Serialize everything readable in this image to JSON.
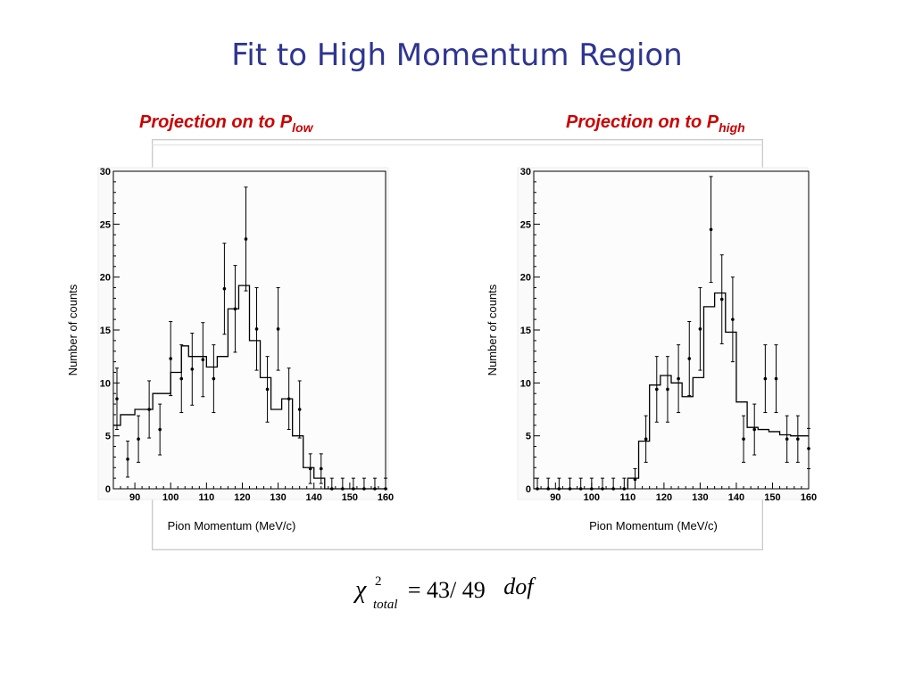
{
  "slide": {
    "title": "Fit to High Momentum Region",
    "left_label": "Projection on to P",
    "left_label_sub": "low",
    "right_label": "Projection on to P",
    "right_label_sub": "high",
    "equation": {
      "symbol": "χ",
      "superscript": "2",
      "subscript": "total",
      "value": "= 43/ 49",
      "unit": "dof"
    }
  },
  "colors": {
    "title": "#2e3592",
    "subtitle": "#cc0000",
    "plot_bg": "#fafafa"
  },
  "chart_data": [
    {
      "type": "bar",
      "title": "",
      "xlabel": "Pion Momentum (MeV/c)",
      "ylabel": "Number of counts",
      "xlim": [
        84,
        160
      ],
      "ylim": [
        0,
        30
      ],
      "xticks": [
        90,
        100,
        110,
        120,
        130,
        140,
        150,
        160
      ],
      "yticks": [
        0,
        5,
        10,
        15,
        20,
        25,
        30
      ],
      "fit_step": {
        "edges": [
          84,
          86,
          90,
          95,
          100,
          103,
          105,
          110,
          113,
          116,
          119,
          122,
          125,
          128,
          131,
          134,
          137,
          140,
          143,
          145,
          160
        ],
        "values": [
          6,
          7,
          7.5,
          9,
          11,
          13.5,
          12.5,
          11.5,
          12.5,
          17,
          19.2,
          14,
          10.5,
          7.5,
          8.5,
          5,
          2,
          1,
          0,
          0
        ]
      },
      "points": {
        "x": [
          85,
          88,
          91,
          94,
          97,
          100,
          103,
          106,
          109,
          112,
          115,
          118,
          121,
          124,
          127,
          130,
          133,
          136,
          139,
          142,
          145,
          148,
          151,
          154,
          157,
          160
        ],
        "y": [
          8.5,
          2.8,
          4.7,
          7.5,
          5.6,
          12.3,
          10.4,
          11.3,
          12.2,
          10.4,
          18.9,
          17.0,
          23.6,
          15.1,
          9.4,
          15.1,
          8.5,
          7.5,
          1.9,
          1.9,
          0,
          0,
          0,
          0,
          0,
          0
        ],
        "err": [
          2.9,
          1.7,
          2.2,
          2.7,
          2.4,
          3.5,
          3.2,
          3.4,
          3.5,
          3.2,
          4.3,
          4.1,
          4.9,
          3.9,
          3.1,
          3.9,
          2.9,
          2.7,
          1.4,
          1.4,
          1,
          1,
          1,
          1,
          1,
          1
        ]
      }
    },
    {
      "type": "bar",
      "title": "",
      "xlabel": "Pion Momentum (MeV/c)",
      "ylabel": "Number of counts",
      "xlim": [
        84,
        160
      ],
      "ylim": [
        0,
        30
      ],
      "xticks": [
        90,
        100,
        110,
        120,
        130,
        140,
        150,
        160
      ],
      "yticks": [
        0,
        5,
        10,
        15,
        20,
        25,
        30
      ],
      "fit_step": {
        "edges": [
          84,
          110,
          113,
          116,
          119,
          122,
          125,
          128,
          131,
          134,
          137,
          140,
          143,
          146,
          149,
          152,
          155,
          160
        ],
        "values": [
          0,
          1,
          4.5,
          9.8,
          10.7,
          10,
          8.7,
          10.5,
          17.2,
          18.5,
          14.8,
          8.2,
          5.8,
          5.6,
          5.4,
          5.1,
          5
        ]
      },
      "points": {
        "x": [
          85,
          88,
          91,
          94,
          97,
          100,
          103,
          106,
          109,
          112,
          115,
          118,
          121,
          124,
          127,
          130,
          133,
          136,
          139,
          142,
          145,
          148,
          151,
          154,
          157,
          160
        ],
        "y": [
          0,
          0,
          0,
          0,
          0,
          0,
          0,
          0,
          0,
          0.9,
          4.7,
          9.4,
          9.4,
          10.4,
          12.3,
          15.1,
          24.5,
          17.9,
          16.0,
          4.7,
          5.6,
          10.4,
          10.4,
          4.7,
          4.7,
          3.8
        ],
        "err": [
          1,
          1,
          1,
          1,
          1,
          1,
          1,
          1,
          1,
          1,
          2.2,
          3.1,
          3.1,
          3.2,
          3.5,
          3.9,
          5.0,
          4.2,
          4.0,
          2.2,
          2.4,
          3.2,
          3.2,
          2.2,
          2.2,
          1.9
        ]
      }
    }
  ]
}
